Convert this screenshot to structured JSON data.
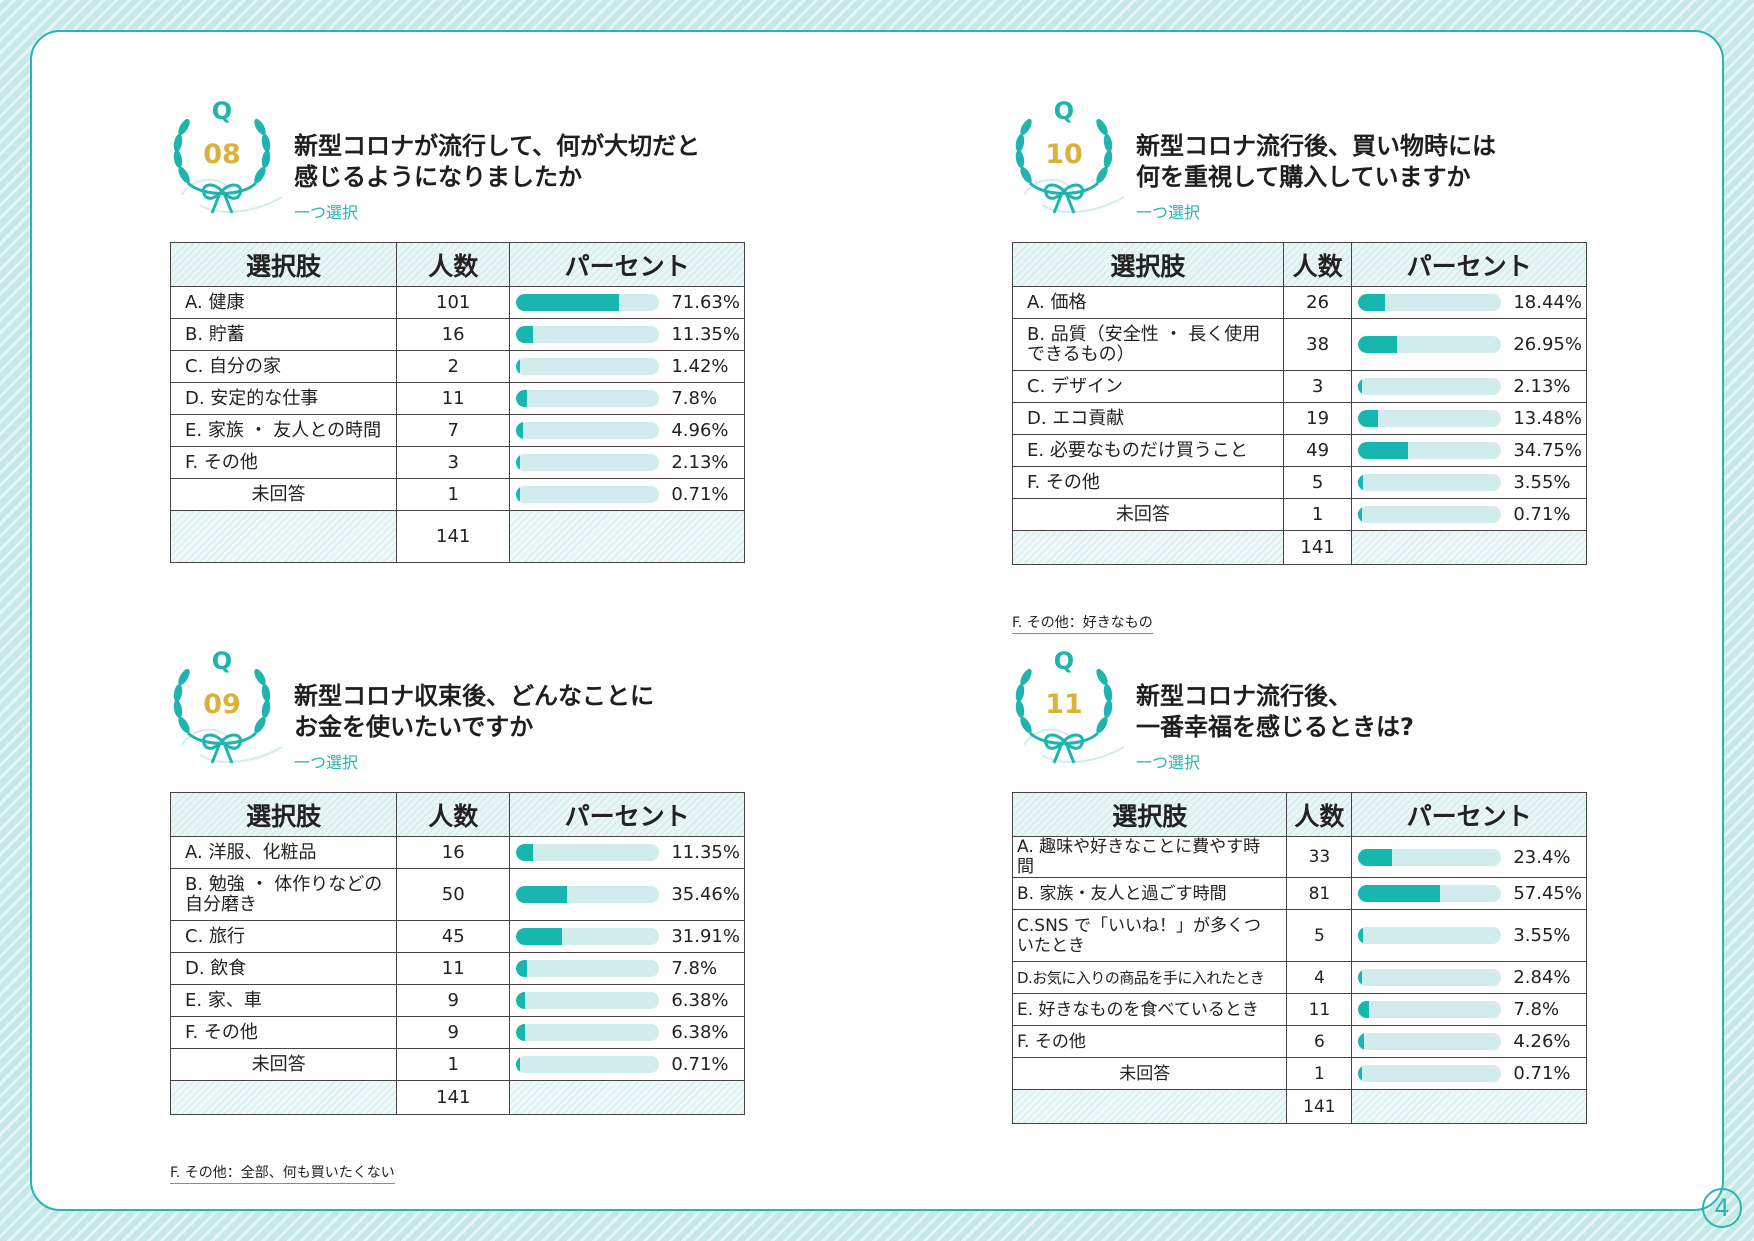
{
  "questions": [
    {
      "number": "08",
      "q_letter": "Q",
      "title_line1": "新型コロナが流行して、何が大切だと",
      "title_line2": "感じるようになりましたか",
      "subtitle": "一つ選択",
      "headers": {
        "option": "選択肢",
        "count": "人数",
        "percent": "パーセント"
      },
      "rows": [
        {
          "label": "A. 健康",
          "count": "101",
          "percent": "71.63%",
          "value": 71.63
        },
        {
          "label": "B. 貯蓄",
          "count": "16",
          "percent": "11.35%",
          "value": 11.35
        },
        {
          "label": "C. 自分の家",
          "count": "2",
          "percent": "1.42%",
          "value": 1.42
        },
        {
          "label": "D. 安定的な仕事",
          "count": "11",
          "percent": "7.8%",
          "value": 7.8
        },
        {
          "label": "E. 家族 ・ 友人との時間",
          "count": "7",
          "percent": "4.96%",
          "value": 4.96
        },
        {
          "label": "F. その他",
          "count": "3",
          "percent": "2.13%",
          "value": 2.13
        },
        {
          "label": "未回答",
          "count": "1",
          "percent": "0.71%",
          "value": 0.71
        }
      ],
      "total": "141",
      "note": ""
    },
    {
      "number": "09",
      "q_letter": "Q",
      "title_line1": "新型コロナ収束後、どんなことに",
      "title_line2": "お金を使いたいですか",
      "subtitle": "一つ選択",
      "headers": {
        "option": "選択肢",
        "count": "人数",
        "percent": "パーセント"
      },
      "rows": [
        {
          "label": "A. 洋服、化粧品",
          "count": "16",
          "percent": "11.35%",
          "value": 11.35
        },
        {
          "label": "B. 勉強 ・ 体作りなどの自分磨き",
          "count": "50",
          "percent": "35.46%",
          "value": 35.46
        },
        {
          "label": "C. 旅行",
          "count": "45",
          "percent": "31.91%",
          "value": 31.91
        },
        {
          "label": "D. 飲食",
          "count": "11",
          "percent": "7.8%",
          "value": 7.8
        },
        {
          "label": "E. 家、車",
          "count": "9",
          "percent": "6.38%",
          "value": 6.38
        },
        {
          "label": "F. その他",
          "count": "9",
          "percent": "6.38%",
          "value": 6.38
        },
        {
          "label": "未回答",
          "count": "1",
          "percent": "0.71%",
          "value": 0.71
        }
      ],
      "total": "141",
      "note": "F. その他：全部、何も買いたくない"
    },
    {
      "number": "10",
      "q_letter": "Q",
      "title_line1": "新型コロナ流行後、買い物時には",
      "title_line2": "何を重視して購入していますか",
      "subtitle": "一つ選択",
      "headers": {
        "option": "選択肢",
        "count": "人数",
        "percent": "パーセント"
      },
      "rows": [
        {
          "label": "A. 価格",
          "count": "26",
          "percent": "18.44%",
          "value": 18.44
        },
        {
          "label": "B. 品質（安全性 ・ 長く使用できるもの）",
          "count": "38",
          "percent": "26.95%",
          "value": 26.95
        },
        {
          "label": "C. デザイン",
          "count": "3",
          "percent": "2.13%",
          "value": 2.13
        },
        {
          "label": "D. エコ貢献",
          "count": "19",
          "percent": "13.48%",
          "value": 13.48
        },
        {
          "label": "E. 必要なものだけ買うこと",
          "count": "49",
          "percent": "34.75%",
          "value": 34.75
        },
        {
          "label": "F. その他",
          "count": "5",
          "percent": "3.55%",
          "value": 3.55
        },
        {
          "label": "未回答",
          "count": "1",
          "percent": "0.71%",
          "value": 0.71
        }
      ],
      "total": "141",
      "note": "F. その他：好きなもの"
    },
    {
      "number": "11",
      "q_letter": "Q",
      "title_line1": "新型コロナ流行後、",
      "title_line2": "一番幸福を感じるときは?",
      "subtitle": "一つ選択",
      "headers": {
        "option": "選択肢",
        "count": "人数",
        "percent": "パーセント"
      },
      "rows": [
        {
          "label": "A. 趣味や好きなことに費やす時間",
          "count": "33",
          "percent": "23.4%",
          "value": 23.4
        },
        {
          "label": "B. 家族・友人と過ごす時間",
          "count": "81",
          "percent": "57.45%",
          "value": 57.45
        },
        {
          "label": "C.SNS で「いいね！」が多くついたとき",
          "count": "5",
          "percent": "3.55%",
          "value": 3.55
        },
        {
          "label": "D.お気に入りの商品を手に入れたとき",
          "count": "4",
          "percent": "2.84%",
          "value": 2.84
        },
        {
          "label": "E. 好きなものを食べているとき",
          "count": "11",
          "percent": "7.8%",
          "value": 7.8
        },
        {
          "label": "F. その他",
          "count": "6",
          "percent": "4.26%",
          "value": 4.26
        },
        {
          "label": "未回答",
          "count": "1",
          "percent": "0.71%",
          "value": 0.71
        }
      ],
      "total": "141",
      "note": ""
    }
  ],
  "page_number": "4",
  "colors": {
    "accent": "#29b5b0",
    "bar_fill": "#17b7b0",
    "bar_track": "#d0ecec",
    "number_gold": "#d9b23a"
  },
  "icons": {
    "emblem": "laurel-wreath-ribbon-icon"
  }
}
